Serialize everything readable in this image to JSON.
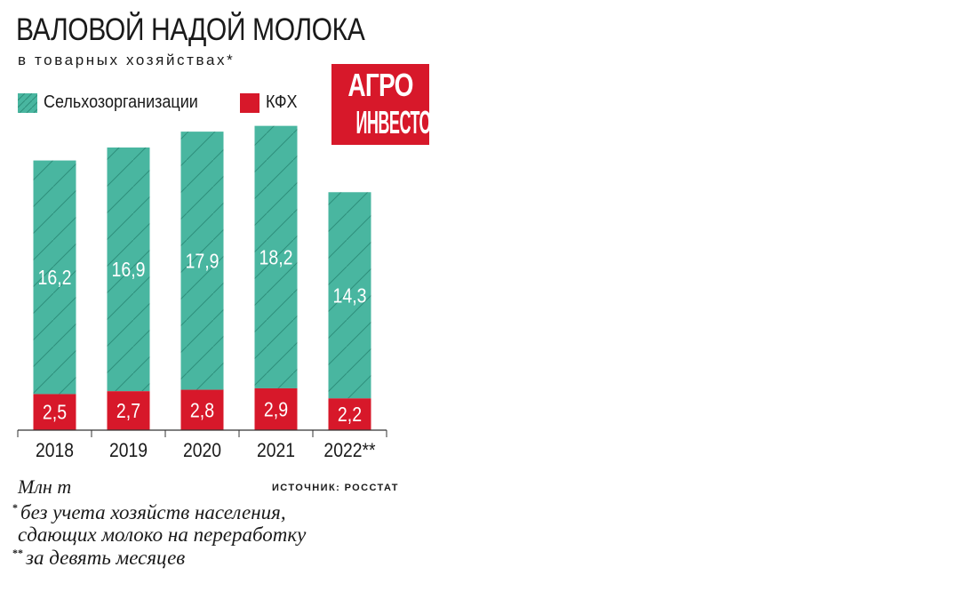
{
  "title": "ВАЛОВОЙ НАДОЙ МОЛОКА",
  "subtitle": "в товарных хозяйствах*",
  "logo": {
    "line1": "АГРО",
    "line2": "ИНВЕСТОР"
  },
  "unit": "Млн т",
  "source": "ИСТОЧНИК: РОССТАТ",
  "notes": [
    {
      "mark": "*",
      "text": "без учета хозяйств населения,"
    },
    {
      "mark": "",
      "text": "сдающих молоко на переработку"
    },
    {
      "mark": "**",
      "text": "за девять месяцев"
    }
  ],
  "colors": {
    "teal": "#49b6a0",
    "red": "#d7182a",
    "hatch": "#2e8f7c"
  },
  "chart_data": {
    "type": "bar",
    "stacked": true,
    "categories": [
      "2018",
      "2019",
      "2020",
      "2021",
      "2022**"
    ],
    "series": [
      {
        "name": "КФХ",
        "values": [
          2.5,
          2.7,
          2.8,
          2.9,
          2.2
        ],
        "labels": [
          "2,5",
          "2,7",
          "2,8",
          "2,9",
          "2,2"
        ]
      },
      {
        "name": "Сельхозорганизации",
        "values": [
          16.2,
          16.9,
          17.9,
          18.2,
          14.3
        ],
        "labels": [
          "16,2",
          "16,9",
          "17,9",
          "18,2",
          "14,3"
        ]
      }
    ],
    "ylim": [
      0,
      21.2
    ],
    "legend": "top-left",
    "grid": false
  }
}
